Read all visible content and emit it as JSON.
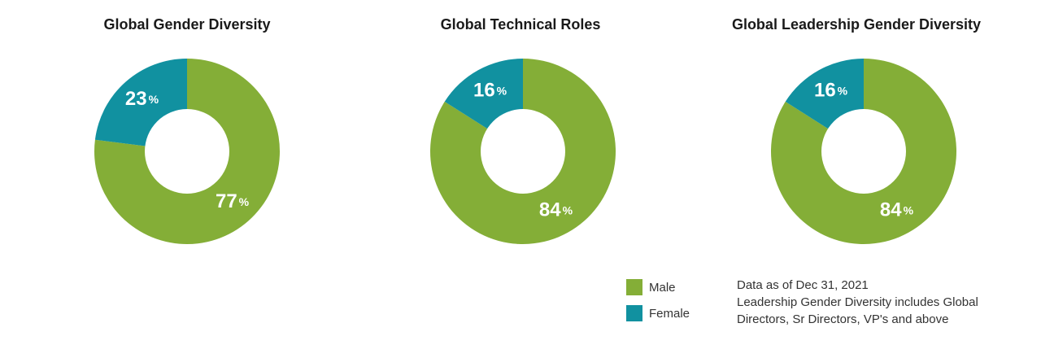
{
  "colors": {
    "male": "#84ae37",
    "female": "#1191a0",
    "hole": "#ffffff"
  },
  "chart_data": [
    {
      "type": "pie",
      "title": "Global Gender Diversity",
      "slices": [
        {
          "name": "Male",
          "value": 77,
          "label": "77"
        },
        {
          "name": "Female",
          "value": 23,
          "label": "23"
        }
      ]
    },
    {
      "type": "pie",
      "title": "Global Technical Roles",
      "slices": [
        {
          "name": "Male",
          "value": 84,
          "label": "84"
        },
        {
          "name": "Female",
          "value": 16,
          "label": "16"
        }
      ]
    },
    {
      "type": "pie",
      "title": "Global Leadership Gender Diversity",
      "slices": [
        {
          "name": "Male",
          "value": 84,
          "label": "84"
        },
        {
          "name": "Female",
          "value": 16,
          "label": "16"
        }
      ]
    }
  ],
  "percent_symbol": "%",
  "legend": {
    "placement": "bottom-right",
    "items": [
      {
        "label": "Male"
      },
      {
        "label": "Female"
      }
    ]
  },
  "note": {
    "line1": "Data as of Dec 31, 2021",
    "line2": "Leadership Gender Diversity includes Global",
    "line3": "Directors, Sr Directors, VP's and above"
  }
}
